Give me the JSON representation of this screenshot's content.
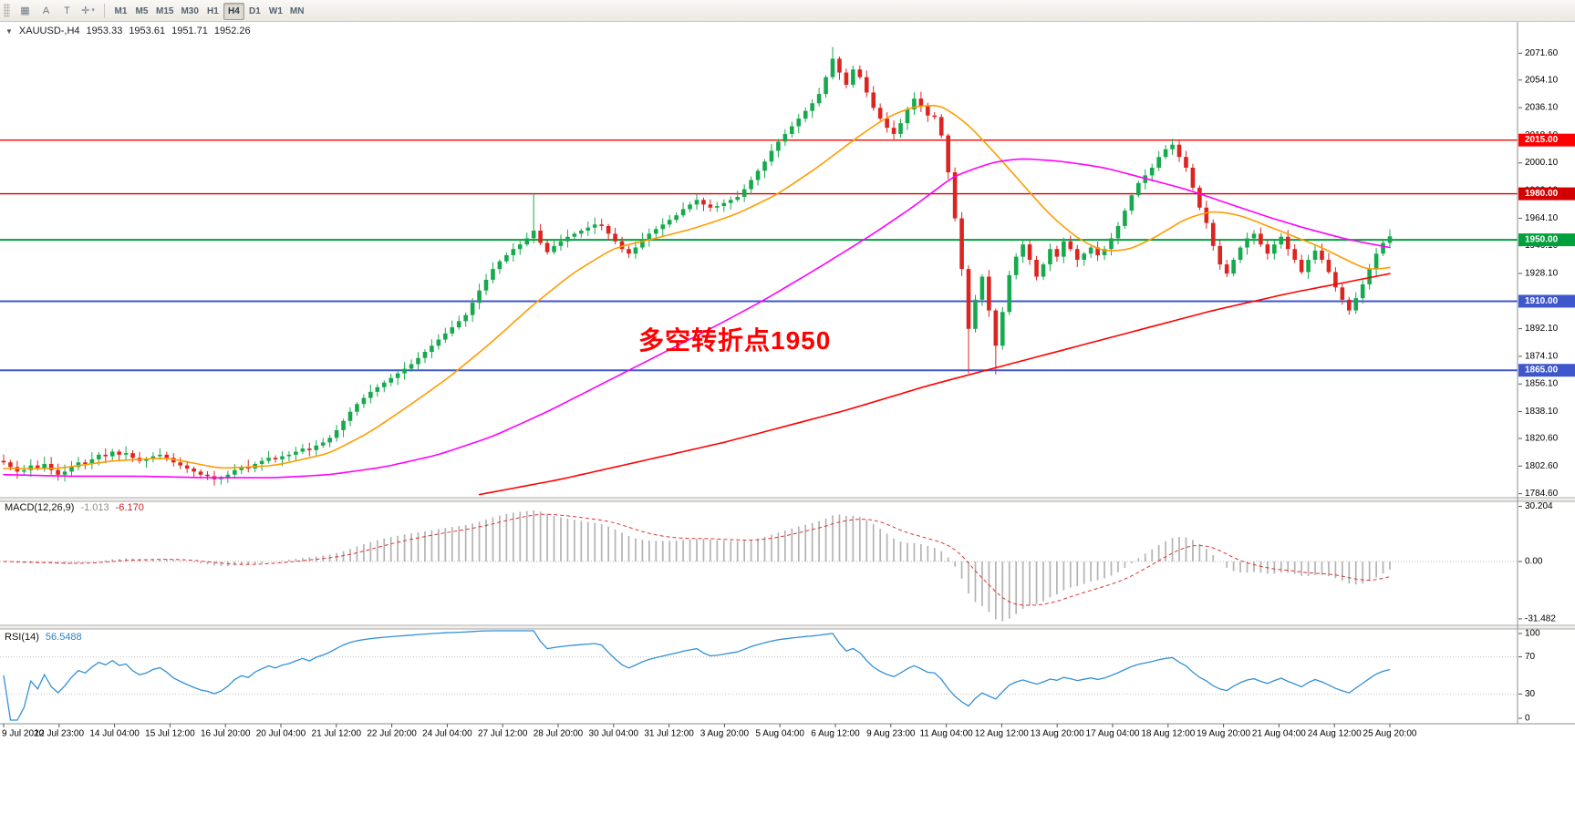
{
  "toolbar": {
    "tools": [
      {
        "name": "chart-grid",
        "glyph": "▦"
      },
      {
        "name": "cursor-a",
        "glyph": "A"
      },
      {
        "name": "text-tool",
        "glyph": "T"
      },
      {
        "name": "crosshair-menu",
        "glyph": "✛",
        "caret": "▾"
      }
    ],
    "periods": [
      "M1",
      "M5",
      "M15",
      "M30",
      "H1",
      "H4",
      "D1",
      "W1",
      "MN"
    ],
    "active_period": "H4"
  },
  "main_chart": {
    "dropdown_glyph": "▼",
    "symbol_period": "XAUUSD-,H4",
    "open": "1953.33",
    "high": "1953.61",
    "low": "1951.71",
    "close": "1952.26"
  },
  "indicators": {
    "macd": {
      "name": "MACD(12,26,9)",
      "value_main": "-1.013",
      "value_signal": "-6.170"
    },
    "rsi": {
      "name": "RSI(14)",
      "value": "56.5488"
    }
  },
  "chart_data": {
    "type": "candlestick",
    "symbol": "XAUUSD-",
    "timeframe": "H4",
    "title": "XAUUSD-,H4 1953.33 1953.61 1951.71 1952.26",
    "y_range": {
      "max": 2092,
      "min": 1782
    },
    "y_axis_ticks": [
      "2071.60",
      "2054.10",
      "2036.10",
      "2018.10",
      "2000.10",
      "1982.10",
      "1964.10",
      "1946.10",
      "1928.10",
      "1910.10",
      "1892.10",
      "1874.10",
      "1856.10",
      "1838.10",
      "1820.60",
      "1802.60",
      "1784.60"
    ],
    "x_labels": [
      "9 Jul 2020",
      "12 Jul 23:00",
      "14 Jul 04:00",
      "15 Jul 12:00",
      "16 Jul 20:00",
      "20 Jul 04:00",
      "21 Jul 12:00",
      "22 Jul 20:00",
      "24 Jul 04:00",
      "27 Jul 12:00",
      "28 Jul 20:00",
      "30 Jul 04:00",
      "31 Jul 12:00",
      "3 Aug 20:00",
      "5 Aug 04:00",
      "6 Aug 12:00",
      "9 Aug 23:00",
      "11 Aug 04:00",
      "12 Aug 12:00",
      "13 Aug 20:00",
      "17 Aug 04:00",
      "18 Aug 12:00",
      "19 Aug 20:00",
      "21 Aug 04:00",
      "24 Aug 12:00",
      "25 Aug 20:00"
    ],
    "first_open": 1806,
    "closes": [
      1805,
      1802,
      1799,
      1800,
      1803,
      1801,
      1804,
      1800,
      1797,
      1799,
      1802,
      1805,
      1804,
      1807,
      1810,
      1809,
      1812,
      1810,
      1811,
      1808,
      1806,
      1807,
      1809,
      1810,
      1808,
      1805,
      1803,
      1801,
      1799,
      1797,
      1796,
      1794,
      1795,
      1797,
      1800,
      1802,
      1801,
      1804,
      1806,
      1808,
      1807,
      1809,
      1810,
      1812,
      1814,
      1813,
      1816,
      1818,
      1821,
      1826,
      1832,
      1838,
      1843,
      1847,
      1851,
      1854,
      1857,
      1860,
      1863,
      1866,
      1869,
      1873,
      1877,
      1881,
      1885,
      1889,
      1893,
      1897,
      1901,
      1909,
      1917,
      1924,
      1931,
      1936,
      1940,
      1944,
      1947,
      1951,
      1956,
      1948,
      1942,
      1946,
      1949,
      1952,
      1954,
      1956,
      1958,
      1960,
      1959,
      1954,
      1949,
      1944,
      1941,
      1945,
      1950,
      1954,
      1957,
      1960,
      1963,
      1966,
      1970,
      1973,
      1976,
      1973,
      1971,
      1972,
      1974,
      1976,
      1978,
      1983,
      1989,
      1995,
      2001,
      2008,
      2014,
      2019,
      2024,
      2029,
      2034,
      2039,
      2045,
      2056,
      2068,
      2059,
      2051,
      2061,
      2056,
      2046,
      2036,
      2029,
      2023,
      2019,
      2026,
      2035,
      2042,
      2037,
      2031,
      2030,
      2018,
      1994,
      1964,
      1931,
      1892,
      1911,
      1926,
      1904,
      1881,
      1903,
      1927,
      1939,
      1947,
      1937,
      1926,
      1934,
      1944,
      1939,
      1949,
      1944,
      1937,
      1941,
      1945,
      1940,
      1944,
      1951,
      1959,
      1969,
      1979,
      1987,
      1992,
      1997,
      2004,
      2009,
      2012,
      2004,
      1997,
      1984,
      1971,
      1961,
      1946,
      1934,
      1928,
      1937,
      1945,
      1951,
      1954,
      1947,
      1941,
      1947,
      1952,
      1944,
      1937,
      1929,
      1937,
      1943,
      1937,
      1929,
      1919,
      1911,
      1904,
      1912,
      1921,
      1931,
      1941,
      1948,
      1952.3
    ],
    "wick_overrides": {
      "31": [
        null,
        1790
      ],
      "78": [
        1980.5,
        null
      ],
      "122": [
        2075.6,
        null
      ],
      "142": [
        null,
        1863.0
      ],
      "146": [
        null,
        1862.3
      ],
      "172": [
        2015.8,
        null
      ]
    },
    "horizontal_lines": [
      {
        "price": 2015.0,
        "label": "2015.00",
        "color": "#ff0000",
        "width": 1.4
      },
      {
        "price": 1980.0,
        "label": "1980.00",
        "color": "#d20000",
        "width": 1.4
      },
      {
        "price": 1950.0,
        "label": "1950.00",
        "color": "#00a03c",
        "width": 2
      },
      {
        "price": 1910.0,
        "label": "1910.00",
        "color": "#3f57cd",
        "width": 2
      },
      {
        "price": 1865.0,
        "label": "1865.00",
        "color": "#3f57cd",
        "width": 2
      }
    ],
    "moving_averages": [
      {
        "name": "ma-fast-orange",
        "color": "#ff9c00",
        "points": [
          [
            0,
            1801
          ],
          [
            8,
            1801
          ],
          [
            16,
            1806
          ],
          [
            24,
            1808
          ],
          [
            32,
            1801
          ],
          [
            40,
            1803
          ],
          [
            48,
            1811
          ],
          [
            54,
            1825
          ],
          [
            60,
            1843
          ],
          [
            66,
            1862
          ],
          [
            72,
            1884
          ],
          [
            78,
            1908
          ],
          [
            84,
            1929
          ],
          [
            90,
            1945
          ],
          [
            96,
            1951
          ],
          [
            102,
            1958
          ],
          [
            108,
            1967
          ],
          [
            114,
            1980
          ],
          [
            120,
            1998
          ],
          [
            126,
            2018
          ],
          [
            130,
            2030
          ],
          [
            134,
            2037
          ],
          [
            138,
            2038
          ],
          [
            142,
            2025
          ],
          [
            146,
            2006
          ],
          [
            150,
            1986
          ],
          [
            154,
            1966
          ],
          [
            158,
            1951
          ],
          [
            162,
            1942
          ],
          [
            166,
            1944
          ],
          [
            170,
            1953
          ],
          [
            174,
            1964
          ],
          [
            178,
            1969
          ],
          [
            182,
            1966
          ],
          [
            186,
            1959
          ],
          [
            190,
            1952
          ],
          [
            194,
            1945
          ],
          [
            198,
            1936
          ],
          [
            201,
            1930
          ],
          [
            204,
            1932
          ]
        ]
      },
      {
        "name": "ma-medium-magenta",
        "color": "#ff00ff",
        "points": [
          [
            0,
            1797
          ],
          [
            10,
            1796
          ],
          [
            20,
            1796
          ],
          [
            30,
            1795
          ],
          [
            40,
            1795
          ],
          [
            48,
            1797
          ],
          [
            56,
            1802
          ],
          [
            64,
            1810
          ],
          [
            72,
            1822
          ],
          [
            80,
            1838
          ],
          [
            88,
            1856
          ],
          [
            96,
            1874
          ],
          [
            104,
            1892
          ],
          [
            112,
            1911
          ],
          [
            120,
            1932
          ],
          [
            128,
            1954
          ],
          [
            134,
            1972
          ],
          [
            140,
            1992
          ],
          [
            146,
            2001
          ],
          [
            150,
            2003
          ],
          [
            156,
            2001
          ],
          [
            162,
            1997
          ],
          [
            168,
            1990
          ],
          [
            174,
            1983
          ],
          [
            180,
            1974
          ],
          [
            186,
            1965
          ],
          [
            192,
            1957
          ],
          [
            198,
            1950
          ],
          [
            204,
            1945
          ]
        ]
      },
      {
        "name": "ma-slow-red",
        "color": "#ff0000",
        "points": [
          [
            70,
            1784
          ],
          [
            76,
            1789
          ],
          [
            82,
            1794
          ],
          [
            88,
            1800
          ],
          [
            94,
            1806
          ],
          [
            100,
            1812
          ],
          [
            106,
            1818
          ],
          [
            112,
            1825
          ],
          [
            118,
            1832
          ],
          [
            124,
            1839
          ],
          [
            130,
            1847
          ],
          [
            136,
            1855
          ],
          [
            142,
            1862
          ],
          [
            148,
            1869
          ],
          [
            154,
            1876
          ],
          [
            160,
            1883
          ],
          [
            166,
            1890
          ],
          [
            172,
            1897
          ],
          [
            178,
            1904
          ],
          [
            184,
            1910
          ],
          [
            190,
            1916
          ],
          [
            196,
            1921
          ],
          [
            204,
            1928
          ]
        ]
      }
    ],
    "annotation": {
      "text": "多空转折点1950",
      "color": "#ff0000"
    },
    "colors": {
      "up": "#16a94d",
      "down": "#dc2420",
      "histogram": "#b3b3b3",
      "macd_signal": "#e03232",
      "rsi_line": "#3390d6"
    },
    "macd_panel": {
      "params": "12,26,9",
      "current_main": -1.013,
      "current_signal": -6.17,
      "axis_ticks": [
        30.204,
        0.0,
        -31.482
      ],
      "axis_labels": [
        "30.204",
        "0.00",
        "-31.482"
      ],
      "range": {
        "max": 33,
        "min": -35
      }
    },
    "rsi_panel": {
      "period": 14,
      "current": 56.5488,
      "levels": [
        70,
        30
      ],
      "axis_ticks": [
        100,
        70,
        30,
        0
      ],
      "range": {
        "max": 100,
        "min": 0
      }
    }
  }
}
